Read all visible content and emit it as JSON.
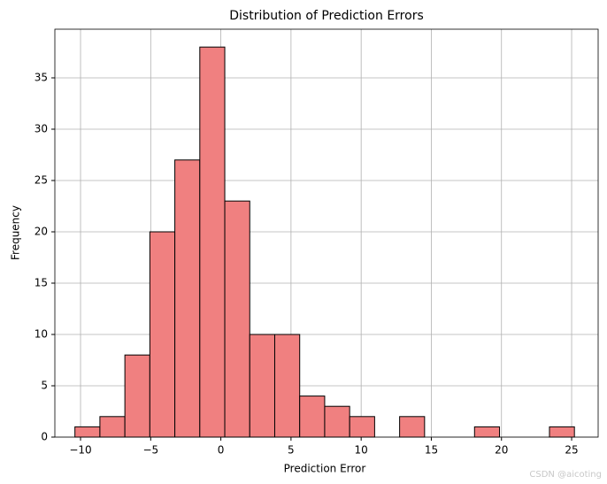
{
  "chart_data": {
    "type": "histogram",
    "title": "Distribution of Prediction Errors",
    "x_label": "Prediction Error",
    "y_label": "Frequency",
    "bins": [
      -10.4,
      -8.62,
      -6.84,
      -5.06,
      -3.28,
      -1.5,
      0.28,
      2.06,
      3.84,
      5.62,
      7.4,
      9.18,
      10.96,
      12.74,
      14.52,
      16.3,
      18.08,
      19.86,
      21.64,
      23.42,
      25.2
    ],
    "values": [
      1,
      2,
      8,
      20,
      27,
      38,
      23,
      10,
      10,
      4,
      3,
      2,
      0,
      2,
      0,
      0,
      1,
      0,
      0,
      1
    ],
    "color": "#f08080",
    "edgecolor": "#000000",
    "xlim": [
      -11.83,
      26.89
    ],
    "ylim": [
      0,
      39.74
    ],
    "xticks": [
      {
        "value": -10,
        "label": "−10"
      },
      {
        "value": -5,
        "label": "−5"
      },
      0,
      5,
      10,
      15,
      20,
      25
    ],
    "yticks": [
      0,
      5,
      10,
      15,
      20,
      25,
      30,
      35
    ],
    "grid": true,
    "watermark": "CSDN @aicoting"
  }
}
